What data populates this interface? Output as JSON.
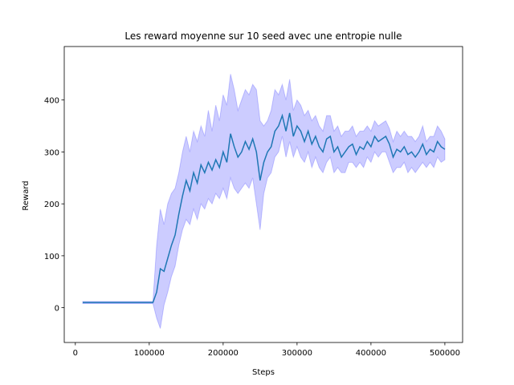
{
  "chart_data": {
    "type": "line",
    "title": "Les reward moyenne sur 10 seed avec une entropie nulle",
    "x_label": "Steps",
    "y_label": "Reward",
    "x": [
      10000,
      15000,
      20000,
      25000,
      30000,
      35000,
      40000,
      45000,
      50000,
      55000,
      60000,
      65000,
      70000,
      75000,
      80000,
      85000,
      90000,
      95000,
      100000,
      105000,
      110000,
      115000,
      120000,
      125000,
      130000,
      135000,
      140000,
      145000,
      150000,
      155000,
      160000,
      165000,
      170000,
      175000,
      180000,
      185000,
      190000,
      195000,
      200000,
      205000,
      210000,
      215000,
      220000,
      225000,
      230000,
      235000,
      240000,
      245000,
      250000,
      255000,
      260000,
      265000,
      270000,
      275000,
      280000,
      285000,
      290000,
      295000,
      300000,
      305000,
      310000,
      315000,
      320000,
      325000,
      330000,
      335000,
      340000,
      345000,
      350000,
      355000,
      360000,
      365000,
      370000,
      375000,
      380000,
      385000,
      390000,
      395000,
      400000,
      405000,
      410000,
      415000,
      420000,
      425000,
      430000,
      435000,
      440000,
      445000,
      450000,
      455000,
      460000,
      465000,
      470000,
      475000,
      480000,
      485000,
      490000,
      495000,
      500000
    ],
    "values": [
      10,
      10,
      10,
      10,
      10,
      10,
      10,
      10,
      10,
      10,
      10,
      10,
      10,
      10,
      10,
      10,
      10,
      10,
      10,
      10,
      30,
      75,
      70,
      95,
      120,
      140,
      180,
      215,
      245,
      225,
      260,
      240,
      275,
      260,
      280,
      265,
      285,
      270,
      300,
      280,
      335,
      310,
      290,
      300,
      320,
      305,
      325,
      300,
      245,
      280,
      300,
      310,
      340,
      350,
      370,
      340,
      375,
      330,
      350,
      340,
      320,
      340,
      315,
      330,
      310,
      300,
      325,
      330,
      300,
      310,
      290,
      300,
      310,
      315,
      295,
      310,
      305,
      320,
      310,
      330,
      320,
      325,
      330,
      315,
      290,
      305,
      300,
      310,
      295,
      300,
      290,
      300,
      315,
      295,
      305,
      300,
      320,
      310,
      305
    ],
    "band_lower": [
      8,
      8,
      8,
      8,
      8,
      8,
      8,
      8,
      8,
      8,
      8,
      8,
      8,
      8,
      8,
      8,
      8,
      8,
      8,
      8,
      -20,
      -40,
      5,
      30,
      60,
      80,
      120,
      150,
      170,
      160,
      190,
      170,
      200,
      190,
      210,
      200,
      220,
      210,
      230,
      210,
      250,
      230,
      220,
      230,
      240,
      230,
      250,
      200,
      150,
      220,
      250,
      260,
      290,
      300,
      330,
      290,
      320,
      290,
      310,
      290,
      280,
      300,
      270,
      290,
      270,
      260,
      280,
      290,
      260,
      270,
      260,
      260,
      280,
      280,
      270,
      280,
      270,
      290,
      280,
      300,
      290,
      300,
      300,
      280,
      260,
      270,
      270,
      280,
      260,
      270,
      260,
      270,
      280,
      270,
      280,
      270,
      290,
      280,
      285
    ],
    "band_upper": [
      12,
      12,
      12,
      12,
      12,
      12,
      12,
      12,
      12,
      12,
      12,
      12,
      12,
      12,
      12,
      12,
      12,
      12,
      12,
      12,
      120,
      190,
      160,
      200,
      220,
      230,
      260,
      300,
      330,
      300,
      340,
      320,
      350,
      330,
      380,
      340,
      390,
      360,
      410,
      390,
      450,
      420,
      380,
      400,
      420,
      410,
      430,
      420,
      360,
      350,
      360,
      380,
      420,
      410,
      430,
      400,
      440,
      380,
      400,
      390,
      370,
      380,
      360,
      370,
      350,
      340,
      370,
      370,
      340,
      350,
      330,
      340,
      340,
      350,
      330,
      340,
      340,
      350,
      340,
      360,
      350,
      355,
      360,
      345,
      320,
      340,
      330,
      340,
      330,
      330,
      320,
      330,
      350,
      320,
      330,
      330,
      350,
      340,
      325
    ],
    "color": "#1f77b4",
    "band_color": "#0000ff",
    "xlim": [
      -15000,
      524000
    ],
    "xticks": [
      0,
      100000,
      200000,
      300000,
      400000,
      500000
    ],
    "ylim": [
      -67,
      503
    ],
    "yticks": [
      0,
      100,
      200,
      300,
      400
    ]
  }
}
